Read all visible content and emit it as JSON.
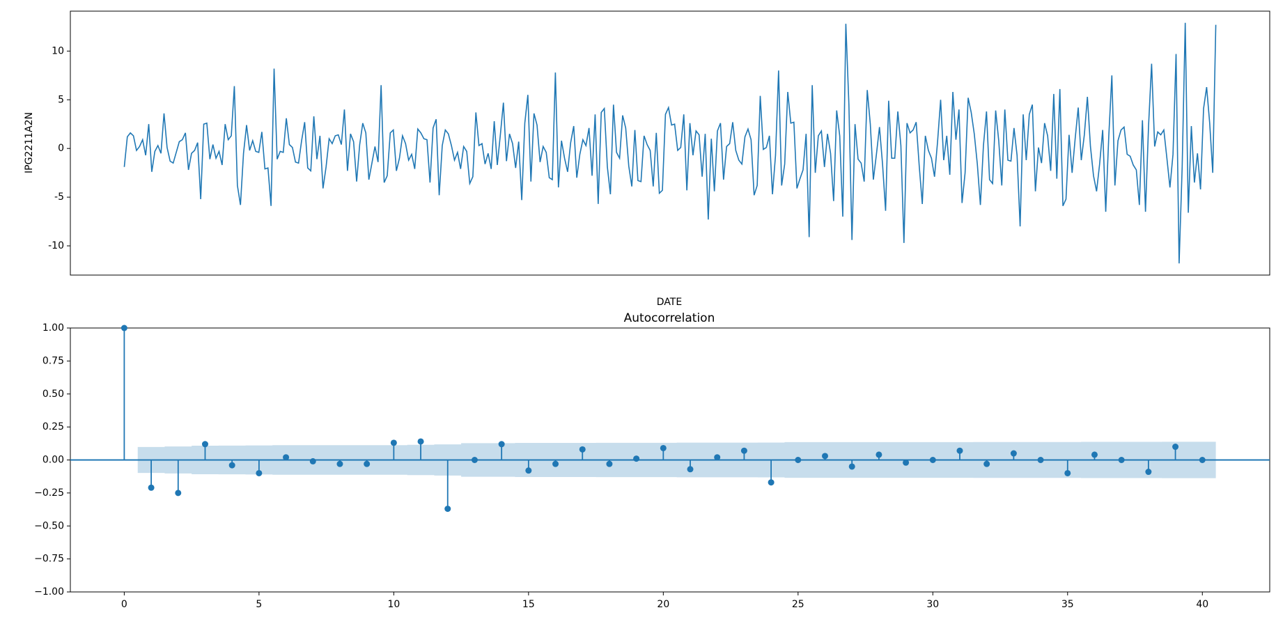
{
  "chart_data": [
    {
      "type": "line",
      "y_label": "IPG2211A2N",
      "x_label": "DATE",
      "color": "#1f77b4",
      "ylim": [
        -13,
        14.1
      ],
      "yticks": [
        -10,
        -5,
        0,
        5,
        10
      ],
      "values": [
        -1.9,
        1.2,
        1.6,
        1.3,
        -0.2,
        0.2,
        0.9,
        -0.7,
        2.5,
        -2.4,
        -0.3,
        0.3,
        -0.5,
        3.6,
        0.1,
        -1.3,
        -1.5,
        -0.4,
        0.7,
        0.9,
        1.6,
        -2.2,
        -0.5,
        -0.2,
        0.6,
        -5.2,
        2.5,
        2.6,
        -1.1,
        0.4,
        -1.0,
        -0.3,
        -1.7,
        2.5,
        0.9,
        1.3,
        6.4,
        -3.8,
        -5.8,
        -0.5,
        2.4,
        -0.2,
        0.8,
        -0.3,
        -0.4,
        1.7,
        -2.1,
        -2.0,
        -5.9,
        8.2,
        -1.1,
        -0.3,
        -0.4,
        3.1,
        0.4,
        0.1,
        -1.4,
        -1.5,
        0.8,
        2.7,
        -2.0,
        -2.3,
        3.3,
        -1.1,
        1.3,
        -4.1,
        -1.9,
        1.0,
        0.5,
        1.3,
        1.4,
        0.4,
        4.0,
        -2.3,
        1.5,
        0.7,
        -3.4,
        0.4,
        2.6,
        1.6,
        -3.2,
        -1.5,
        0.2,
        -1.4,
        6.5,
        -3.5,
        -2.8,
        1.6,
        1.9,
        -2.3,
        -1.0,
        1.3,
        0.5,
        -1.2,
        -0.6,
        -2.1,
        2.0,
        1.6,
        1.0,
        0.9,
        -3.5,
        2.1,
        3.0,
        -4.8,
        0.3,
        1.9,
        1.5,
        0.3,
        -1.2,
        -0.4,
        -2.1,
        0.2,
        -0.3,
        -3.6,
        -2.9,
        3.7,
        0.3,
        0.5,
        -1.6,
        -0.5,
        -2.1,
        2.8,
        -1.7,
        1.4,
        4.7,
        -1.3,
        1.5,
        0.5,
        -2.0,
        0.7,
        -5.3,
        2.6,
        5.5,
        -3.4,
        3.6,
        2.4,
        -1.4,
        0.2,
        -0.4,
        -3.0,
        -3.2,
        7.8,
        -4.0,
        0.8,
        -1.0,
        -2.4,
        0.6,
        2.3,
        -3.0,
        -0.6,
        0.9,
        0.3,
        2.1,
        -2.8,
        3.5,
        -5.7,
        3.7,
        4.1,
        -1.9,
        -4.7,
        4.5,
        -0.4,
        -1.0,
        3.4,
        2.1,
        -1.8,
        -3.9,
        1.9,
        -3.3,
        -3.4,
        1.3,
        0.4,
        -0.2,
        -3.9,
        1.6,
        -4.6,
        -4.3,
        3.5,
        4.2,
        2.4,
        2.5,
        -0.2,
        0.1,
        3.5,
        -4.3,
        2.6,
        -0.7,
        1.8,
        1.4,
        -2.9,
        1.5,
        -7.3,
        1.0,
        -4.4,
        1.8,
        2.6,
        -3.2,
        0.2,
        0.5,
        2.7,
        -0.2,
        -1.2,
        -1.6,
        1.2,
        2.0,
        0.9,
        -4.8,
        -3.8,
        5.4,
        -0.1,
        0.1,
        1.3,
        -4.7,
        -0.7,
        8.0,
        -3.8,
        -1.6,
        5.8,
        2.6,
        2.7,
        -4.1,
        -3.1,
        -2.2,
        1.5,
        -9.1,
        6.5,
        -2.5,
        1.3,
        1.8,
        -1.9,
        1.5,
        -0.5,
        -5.4,
        3.9,
        1.3,
        -7.0,
        12.8,
        4.5,
        -9.4,
        2.5,
        -1.1,
        -1.5,
        -3.4,
        6.0,
        2.5,
        -3.2,
        -0.6,
        2.2,
        -1.6,
        -6.4,
        4.9,
        -1.0,
        -1.0,
        3.8,
        0.3,
        -9.7,
        2.6,
        1.6,
        1.9,
        2.7,
        -1.8,
        -5.7,
        1.3,
        -0.2,
        -1.0,
        -2.9,
        0.7,
        5.0,
        -1.2,
        1.3,
        -2.7,
        5.8,
        0.9,
        4.0,
        -5.6,
        -2.5,
        5.2,
        3.7,
        1.5,
        -1.6,
        -5.8,
        0.3,
        3.8,
        -3.2,
        -3.6,
        3.9,
        0.8,
        -3.8,
        4.0,
        -1.2,
        -1.3,
        2.1,
        -0.7,
        -8.0,
        3.5,
        -1.2,
        3.5,
        4.5,
        -4.4,
        0.1,
        -1.5,
        2.6,
        1.3,
        -2.3,
        5.6,
        -3.1,
        6.1,
        -5.9,
        -5.2,
        1.4,
        -2.5,
        1.0,
        4.2,
        -1.2,
        1.4,
        5.3,
        0.2,
        -2.8,
        -4.4,
        -1.6,
        1.9,
        -6.5,
        1.3,
        7.5,
        -3.8,
        0.8,
        1.9,
        2.2,
        -0.6,
        -0.8,
        -1.7,
        -2.2,
        -5.8,
        2.9,
        -6.5,
        2.3,
        8.7,
        0.2,
        1.7,
        1.4,
        1.9,
        -1.0,
        -4.0,
        -0.6,
        9.7,
        -11.8,
        -1.9,
        12.9,
        -6.6,
        2.3,
        -3.5,
        -0.5,
        -4.2,
        4.1,
        6.3,
        2.6,
        -2.5,
        12.7
      ]
    },
    {
      "type": "stem",
      "title": "Autocorrelation",
      "color": "#1f77b4",
      "xlim": [
        -2,
        42.5
      ],
      "xticks": [
        0,
        5,
        10,
        15,
        20,
        25,
        30,
        35,
        40
      ],
      "ylim": [
        -1,
        1
      ],
      "yticks": [
        {
          "value": -1,
          "label": "−1.00"
        },
        {
          "value": -0.75,
          "label": "−0.75"
        },
        {
          "value": -0.5,
          "label": "−0.50"
        },
        {
          "value": -0.25,
          "label": "−0.25"
        },
        {
          "value": 0,
          "label": "0.00"
        },
        {
          "value": 0.25,
          "label": "0.25"
        },
        {
          "value": 0.5,
          "label": "0.50"
        },
        {
          "value": 0.75,
          "label": "0.75"
        },
        {
          "value": 1,
          "label": "1.00"
        }
      ],
      "x": [
        0,
        1,
        2,
        3,
        4,
        5,
        6,
        7,
        8,
        9,
        10,
        11,
        12,
        13,
        14,
        15,
        16,
        17,
        18,
        19,
        20,
        21,
        22,
        23,
        24,
        25,
        26,
        27,
        28,
        29,
        30,
        31,
        32,
        33,
        34,
        35,
        36,
        37,
        38,
        39,
        40
      ],
      "values": [
        1.0,
        -0.21,
        -0.25,
        0.12,
        -0.04,
        -0.1,
        0.02,
        -0.01,
        -0.03,
        -0.03,
        0.13,
        0.14,
        -0.37,
        0.0,
        0.12,
        -0.08,
        -0.03,
        0.08,
        -0.03,
        0.01,
        0.09,
        -0.07,
        0.02,
        0.07,
        -0.17,
        0.0,
        0.03,
        -0.05,
        0.04,
        -0.02,
        0.0,
        0.07,
        -0.03,
        0.05,
        0.0,
        -0.1,
        0.04,
        0.0,
        -0.09,
        0.1,
        0.0
      ],
      "band": {
        "x": [
          1,
          2,
          3,
          4,
          5,
          6,
          7,
          8,
          9,
          10,
          11,
          12,
          13,
          14,
          15,
          16,
          17,
          18,
          19,
          20,
          21,
          22,
          23,
          24,
          25,
          26,
          27,
          28,
          29,
          30,
          31,
          32,
          33,
          34,
          35,
          36,
          37,
          38,
          39,
          40
        ],
        "values": [
          0.098,
          0.102,
          0.108,
          0.109,
          0.11,
          0.112,
          0.112,
          0.112,
          0.112,
          0.112,
          0.115,
          0.118,
          0.127,
          0.127,
          0.129,
          0.129,
          0.129,
          0.13,
          0.13,
          0.13,
          0.131,
          0.131,
          0.131,
          0.132,
          0.135,
          0.135,
          0.135,
          0.135,
          0.135,
          0.135,
          0.135,
          0.136,
          0.136,
          0.136,
          0.136,
          0.137,
          0.137,
          0.137,
          0.138,
          0.138
        ]
      }
    }
  ]
}
